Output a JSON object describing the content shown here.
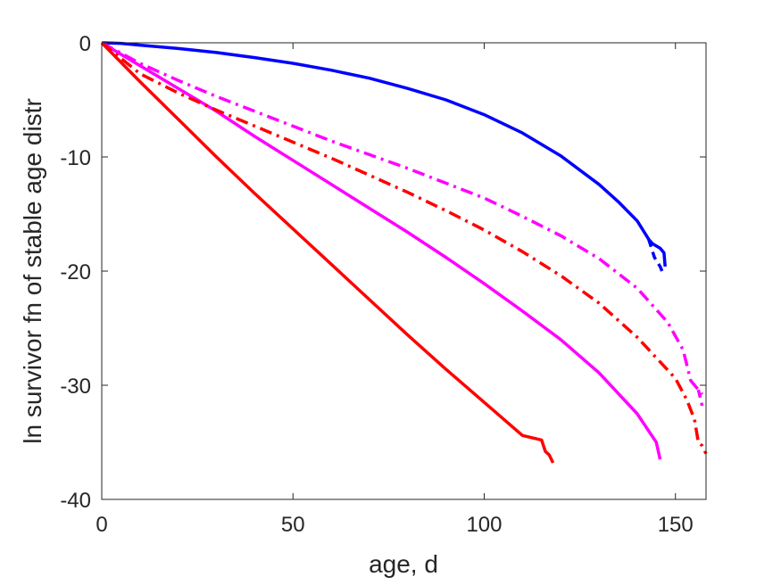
{
  "chart_data": {
    "type": "line",
    "title": "",
    "xlabel": "age, d",
    "ylabel": "ln survivor fn of stable age distr",
    "xlim": [
      0,
      158
    ],
    "ylim": [
      -40,
      0
    ],
    "xticks": [
      0,
      50,
      100,
      150
    ],
    "yticks": [
      0,
      -10,
      -20,
      -30,
      -40
    ],
    "grid": false,
    "colors": {
      "blue": "#0000ff",
      "magenta": "#ff00ff",
      "red": "#ff0000",
      "axis": "#262626"
    },
    "series": [
      {
        "color": "#0000ff",
        "style": "solid",
        "points": [
          [
            0,
            0
          ],
          [
            5,
            -0.05
          ],
          [
            10,
            -0.2
          ],
          [
            20,
            -0.5
          ],
          [
            30,
            -0.85
          ],
          [
            40,
            -1.3
          ],
          [
            50,
            -1.8
          ],
          [
            60,
            -2.4
          ],
          [
            70,
            -3.1
          ],
          [
            80,
            -4.0
          ],
          [
            90,
            -5.0
          ],
          [
            100,
            -6.3
          ],
          [
            110,
            -7.9
          ],
          [
            120,
            -9.9
          ],
          [
            130,
            -12.4
          ],
          [
            135,
            -13.9
          ],
          [
            140,
            -15.6
          ],
          [
            143,
            -17.2
          ],
          [
            144,
            -17.6
          ],
          [
            146,
            -18.0
          ],
          [
            147,
            -18.4
          ],
          [
            147.3,
            -19.6
          ]
        ]
      },
      {
        "color": "#0000ff",
        "style": "dashed",
        "points": [
          [
            143,
            -17.2
          ],
          [
            144.5,
            -18.8
          ],
          [
            146,
            -19.6
          ],
          [
            147,
            -20.4
          ]
        ]
      },
      {
        "color": "#ff00ff",
        "style": "dashdot",
        "points": [
          [
            0,
            0
          ],
          [
            10,
            -1.8
          ],
          [
            20,
            -3.3
          ],
          [
            30,
            -4.7
          ],
          [
            40,
            -6.0
          ],
          [
            50,
            -7.3
          ],
          [
            60,
            -8.6
          ],
          [
            70,
            -9.8
          ],
          [
            80,
            -11.0
          ],
          [
            90,
            -12.3
          ],
          [
            100,
            -13.6
          ],
          [
            110,
            -15.2
          ],
          [
            120,
            -16.9
          ],
          [
            130,
            -18.9
          ],
          [
            140,
            -21.5
          ],
          [
            148,
            -24.5
          ],
          [
            152,
            -26.9
          ],
          [
            154,
            -29.6
          ],
          [
            156,
            -30.4
          ],
          [
            157,
            -30.8
          ]
        ]
      },
      {
        "color": "#ff00ff",
        "style": "dashed",
        "points": [
          [
            156,
            -30.4
          ],
          [
            157,
            -31.8
          ]
        ]
      },
      {
        "color": "#ff00ff",
        "style": "solid",
        "points": [
          [
            0,
            0
          ],
          [
            10,
            -2.0
          ],
          [
            20,
            -4.0
          ],
          [
            30,
            -6.0
          ],
          [
            40,
            -8.2
          ],
          [
            50,
            -10.3
          ],
          [
            60,
            -12.4
          ],
          [
            70,
            -14.5
          ],
          [
            80,
            -16.6
          ],
          [
            90,
            -18.8
          ],
          [
            100,
            -21.1
          ],
          [
            110,
            -23.5
          ],
          [
            120,
            -26.0
          ],
          [
            130,
            -28.9
          ],
          [
            140,
            -32.5
          ],
          [
            145,
            -35.0
          ],
          [
            146,
            -36.5
          ]
        ]
      },
      {
        "color": "#ff0000",
        "style": "dashdot",
        "points": [
          [
            0,
            0
          ],
          [
            10,
            -2.7
          ],
          [
            20,
            -4.4
          ],
          [
            30,
            -5.9
          ],
          [
            40,
            -7.3
          ],
          [
            50,
            -8.7
          ],
          [
            60,
            -10.1
          ],
          [
            70,
            -11.6
          ],
          [
            80,
            -13.1
          ],
          [
            90,
            -14.7
          ],
          [
            100,
            -16.4
          ],
          [
            110,
            -18.3
          ],
          [
            120,
            -20.4
          ],
          [
            130,
            -22.8
          ],
          [
            140,
            -25.8
          ],
          [
            150,
            -29.4
          ],
          [
            153,
            -31.3
          ],
          [
            155,
            -33.0
          ],
          [
            156,
            -35.0
          ],
          [
            157,
            -35.3
          ],
          [
            158,
            -36.0
          ]
        ]
      },
      {
        "color": "#ff0000",
        "style": "solid",
        "points": [
          [
            0,
            0
          ],
          [
            10,
            -3.4
          ],
          [
            20,
            -6.7
          ],
          [
            30,
            -10.0
          ],
          [
            40,
            -13.2
          ],
          [
            50,
            -16.3
          ],
          [
            60,
            -19.4
          ],
          [
            70,
            -22.5
          ],
          [
            80,
            -25.6
          ],
          [
            90,
            -28.6
          ],
          [
            100,
            -31.5
          ],
          [
            110,
            -34.4
          ],
          [
            115,
            -34.8
          ],
          [
            116,
            -35.8
          ],
          [
            117,
            -36.1
          ],
          [
            118,
            -36.8
          ]
        ]
      }
    ]
  }
}
